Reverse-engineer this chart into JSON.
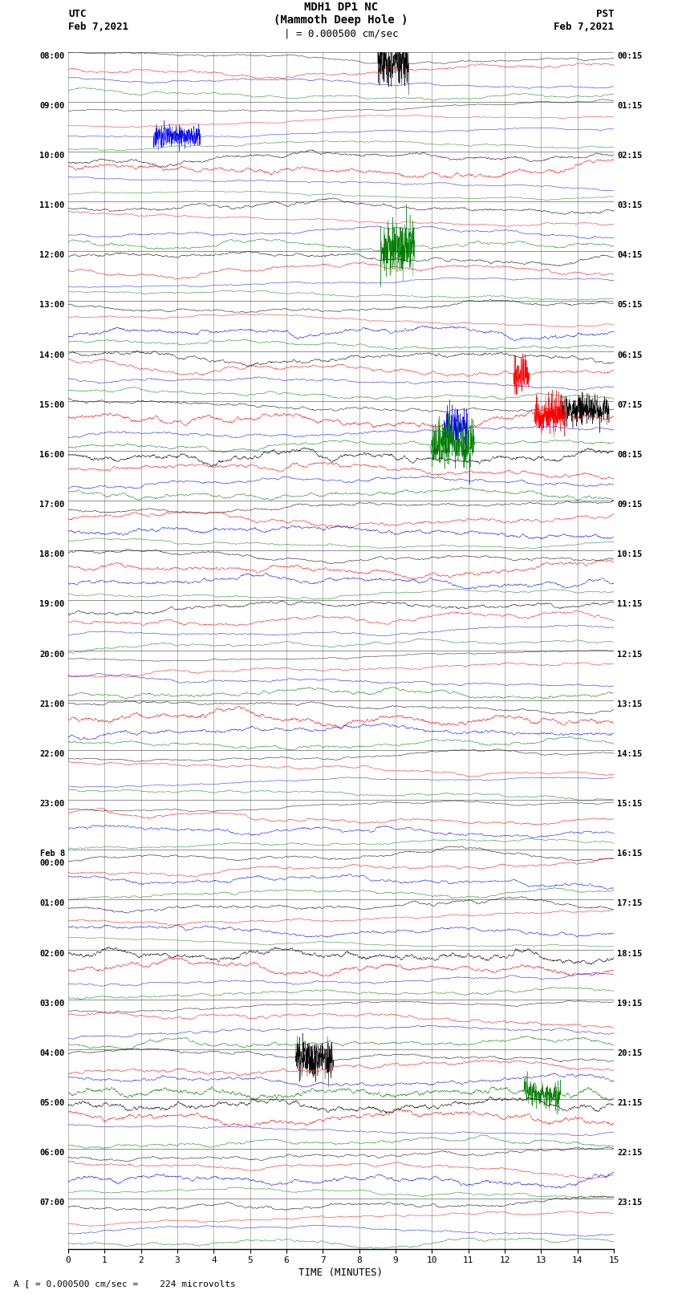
{
  "title_line1": "MDH1 DP1 NC",
  "title_line2": "(Mammoth Deep Hole )",
  "title_line3": "| = 0.000500 cm/sec",
  "left_header_line1": "UTC",
  "left_header_line2": "Feb 7,2021",
  "right_header_line1": "PST",
  "right_header_line2": "Feb 7,2021",
  "xlabel": "TIME (MINUTES)",
  "footer": "A [ = 0.000500 cm/sec =    224 microvolts",
  "x_ticks": [
    0,
    1,
    2,
    3,
    4,
    5,
    6,
    7,
    8,
    9,
    10,
    11,
    12,
    13,
    14,
    15
  ],
  "utc_labels": [
    "08:00",
    "09:00",
    "10:00",
    "11:00",
    "12:00",
    "13:00",
    "14:00",
    "15:00",
    "16:00",
    "17:00",
    "18:00",
    "19:00",
    "20:00",
    "21:00",
    "22:00",
    "23:00",
    "Feb 8\n00:00",
    "01:00",
    "02:00",
    "03:00",
    "04:00",
    "05:00",
    "06:00",
    "07:00"
  ],
  "pst_labels": [
    "00:15",
    "01:15",
    "02:15",
    "03:15",
    "04:15",
    "05:15",
    "06:15",
    "07:15",
    "08:15",
    "09:15",
    "10:15",
    "11:15",
    "12:15",
    "13:15",
    "14:15",
    "15:15",
    "16:15",
    "17:15",
    "18:15",
    "19:15",
    "20:15",
    "21:15",
    "22:15",
    "23:15"
  ],
  "n_rows": 24,
  "traces_per_row": 4,
  "trace_colors": [
    "black",
    "red",
    "blue",
    "green"
  ],
  "bg_color": "white",
  "noise_amplitude": 0.3,
  "noise_seed": 42,
  "fig_width": 8.5,
  "fig_height": 16.13,
  "n_points": 3600,
  "linewidth": 0.3
}
